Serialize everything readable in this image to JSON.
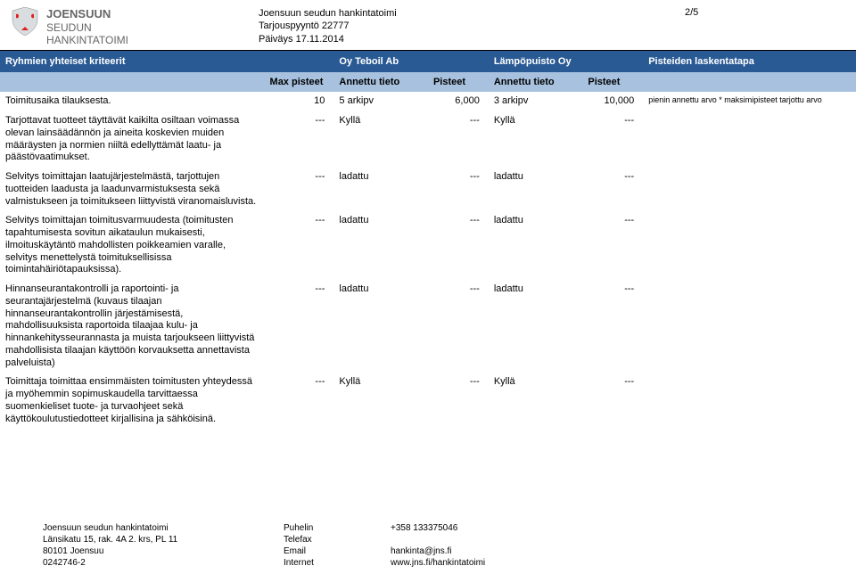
{
  "header": {
    "logo_line1": "JOENSUUN",
    "logo_line2": "SEUDUN",
    "logo_line3": "HANKINTATOIMI",
    "org": "Joensuun seudun hankintatoimi",
    "req": "Tarjouspyyntö 22777",
    "date": "Päiväys 17.11.2014",
    "page": "2/5"
  },
  "thead": {
    "criteria": "Ryhmien yhteiset kriteerit",
    "vendor1": "Oy Teboil Ab",
    "vendor2": "Lämpöpuisto Oy",
    "method": "Pisteiden laskentatapa"
  },
  "subhead": {
    "max": "Max pisteet",
    "at": "Annettu tieto",
    "pt": "Pisteet"
  },
  "rows": [
    {
      "criteria": "Toimitusaika tilauksesta.",
      "max": "10",
      "at1": "5 arkipv",
      "pt1": "6,000",
      "at2": "3 arkipv",
      "pt2": "10,000",
      "method": "pienin annettu arvo * maksimipisteet tarjottu arvo"
    },
    {
      "criteria": "Tarjottavat tuotteet täyttävät kaikilta osiltaan voimassa olevan lainsäädännön ja aineita koskevien muiden määräysten ja normien niiltä edellyttämät laatu- ja päästövaatimukset.",
      "max": "---",
      "at1": "Kyllä",
      "pt1": "---",
      "at2": "Kyllä",
      "pt2": "---",
      "method": ""
    },
    {
      "criteria": "Selvitys toimittajan laatujärjestelmästä, tarjottujen tuotteiden laadusta ja laadunvarmistuksesta sekä valmistukseen ja toimitukseen liittyvistä viranomaisluvista.",
      "max": "---",
      "at1": "ladattu",
      "pt1": "---",
      "at2": "ladattu",
      "pt2": "---",
      "method": ""
    },
    {
      "criteria": "Selvitys toimittajan toimitusvarmuudesta (toimitusten tapahtumisesta sovitun aikataulun mukaisesti, ilmoituskäytäntö mahdollisten poikkeamien varalle, selvitys menettelystä toimituksellisissa toimintahäiriötapauksissa).",
      "max": "---",
      "at1": "ladattu",
      "pt1": "---",
      "at2": "ladattu",
      "pt2": "---",
      "method": ""
    },
    {
      "criteria": "Hinnanseurantakontrolli ja raportointi- ja seurantajärjestelmä (kuvaus tilaajan hinnanseurantakontrollin järjestämisestä, mahdollisuuksista raportoida tilaajaa kulu- ja hinnankehitysseurannasta ja muista tarjoukseen liittyvistä mahdollisista tilaajan käyttöön korvauksetta annettavista palveluista)",
      "max": "---",
      "at1": "ladattu",
      "pt1": "---",
      "at2": "ladattu",
      "pt2": "---",
      "method": ""
    },
    {
      "criteria": "Toimittaja toimittaa ensimmäisten toimitusten yhteydessä ja myöhemmin sopimuskaudella tarvittaessa suomenkieliset tuote- ja turvaohjeet sekä käyttökoulutustiedotteet kirjallisina ja sähköisinä.",
      "max": "---",
      "at1": "Kyllä",
      "pt1": "---",
      "at2": "Kyllä",
      "pt2": "---",
      "method": ""
    }
  ],
  "footer": {
    "org": "Joensuun seudun hankintatoimi",
    "addr1": "Länsikatu 15, rak. 4A 2. krs, PL 11",
    "addr2": "80101 Joensuu",
    "addr3": "0242746-2",
    "labels": {
      "phone": "Puhelin",
      "fax": "Telefax",
      "email": "Email",
      "web": "Internet"
    },
    "phone": "+358 133375046",
    "fax": "",
    "email": "hankinta@jns.fi",
    "web": "www.jns.fi/hankintatoimi"
  }
}
